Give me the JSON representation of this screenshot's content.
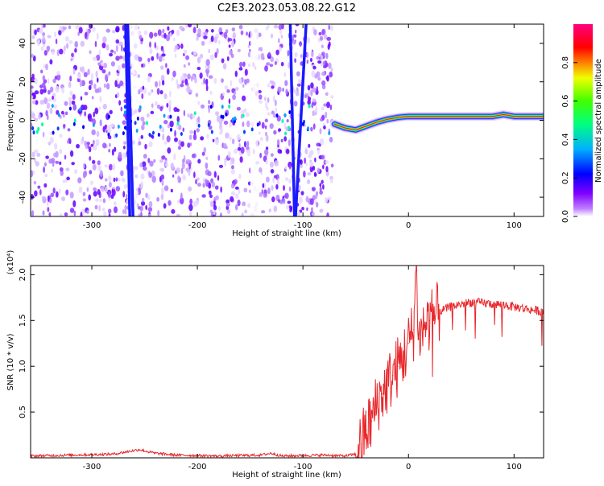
{
  "title": "C2E3.2023.053.08.22.G12",
  "chart_data": [
    {
      "type": "heatmap",
      "title": "C2E3.2023.053.08.22.G12",
      "xlabel": "Height of straight line (km)",
      "ylabel": "Frequency (Hz)",
      "xlim": [
        -358,
        128
      ],
      "ylim": [
        -50,
        50
      ],
      "x_ticks": [
        -300,
        -200,
        -100,
        0,
        100
      ],
      "y_ticks": [
        -40,
        -20,
        0,
        20,
        40
      ],
      "grid": false,
      "colorbar": {
        "label": "Normalized spectral amplitude",
        "range": [
          0,
          1
        ],
        "ticks": [
          0.0,
          0.2,
          0.4,
          0.6,
          0.8
        ],
        "tick_labels": [
          "0.0",
          "0.2",
          "0.4",
          "0.6",
          "0.8"
        ],
        "colormap": [
          "#ffffff",
          "#a000ff",
          "#0000ff",
          "#00e0ff",
          "#00ff40",
          "#f0ff00",
          "#ff8000",
          "#ff0000",
          "#ff0080"
        ]
      },
      "regions": {
        "noise_band_x": [
          -358,
          -72
        ],
        "signal_trace": {
          "x": [
            -70,
            -60,
            -50,
            -40,
            -30,
            -20,
            -10,
            0,
            20,
            40,
            60,
            80,
            90,
            100,
            128
          ],
          "y": [
            -2,
            -4,
            -5,
            -3,
            -1,
            0.5,
            1.5,
            2,
            2,
            2,
            2,
            2,
            3,
            2,
            2
          ]
        },
        "streaks": [
          {
            "x_top": -266,
            "x_bottom": -261
          },
          {
            "x_top": -268,
            "x_bottom": -264
          },
          {
            "x_top": -112,
            "x_bottom": -108
          },
          {
            "x_top": -97,
            "x_bottom": -107
          }
        ]
      }
    },
    {
      "type": "line",
      "xlabel": "Height of straight line (km)",
      "ylabel": "SNR (10 * v/v)",
      "scale_label": "(x10⁴)",
      "xlim": [
        -358,
        128
      ],
      "ylim": [
        0,
        21000
      ],
      "x_ticks": [
        -300,
        -200,
        -100,
        0,
        100
      ],
      "y_ticks": [
        5000,
        10000,
        15000,
        20000
      ],
      "y_tick_labels": [
        "0.5",
        "1.0",
        "1.5",
        "2.0"
      ],
      "grid": false,
      "series": [
        {
          "color": "#e8262a",
          "x": [
            -358,
            -320,
            -280,
            -255,
            -240,
            -220,
            -180,
            -140,
            -130,
            -120,
            -80,
            -60,
            -50,
            -45,
            -40,
            -35,
            -30,
            -25,
            -20,
            -15,
            -10,
            -5,
            0,
            5,
            7,
            10,
            15,
            20,
            25,
            30,
            40,
            50,
            60,
            70,
            80,
            90,
            100,
            110,
            120,
            128
          ],
          "values": [
            200,
            300,
            400,
            900,
            500,
            300,
            200,
            300,
            500,
            200,
            300,
            200,
            400,
            1500,
            3000,
            4000,
            6000,
            7000,
            8000,
            9000,
            10000,
            11000,
            12500,
            14000,
            21000,
            13000,
            14500,
            15000,
            15500,
            16000,
            16500,
            16800,
            17000,
            16900,
            16800,
            16700,
            16500,
            16300,
            16100,
            16000
          ]
        }
      ]
    }
  ]
}
